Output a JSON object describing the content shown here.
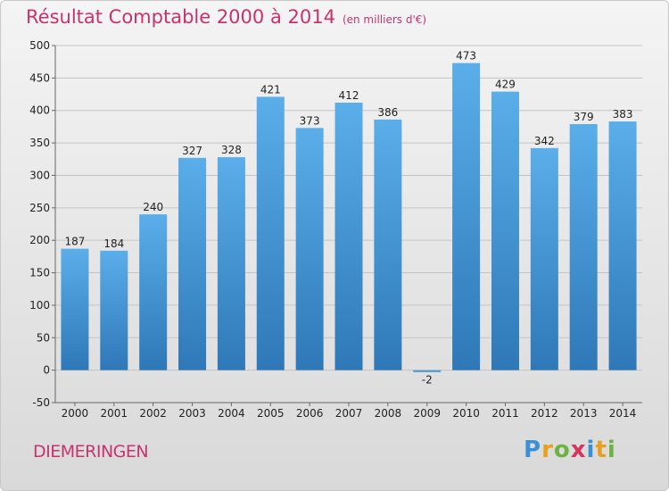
{
  "title": "Résultat Comptable 2000 à 2014",
  "unit": "(en milliers d'€)",
  "place": "DIEMERINGEN",
  "logo": "Proxiti",
  "colors": {
    "title": "#c8336e",
    "bar_top": "#5aaeea",
    "bar_bottom": "#2f78b8"
  },
  "chart_data": {
    "type": "bar",
    "title": "Résultat Comptable 2000 à 2014",
    "categories": [
      "2000",
      "2001",
      "2002",
      "2003",
      "2004",
      "2005",
      "2006",
      "2007",
      "2008",
      "2009",
      "2010",
      "2011",
      "2012",
      "2013",
      "2014"
    ],
    "values": [
      187,
      184,
      240,
      327,
      328,
      421,
      373,
      412,
      386,
      -2,
      473,
      429,
      342,
      379,
      383
    ],
    "ylim": [
      -50,
      500
    ],
    "yticks": [
      -50,
      0,
      50,
      100,
      150,
      200,
      250,
      300,
      350,
      400,
      450,
      500
    ],
    "grid": true,
    "xlabel": "",
    "ylabel": ""
  }
}
